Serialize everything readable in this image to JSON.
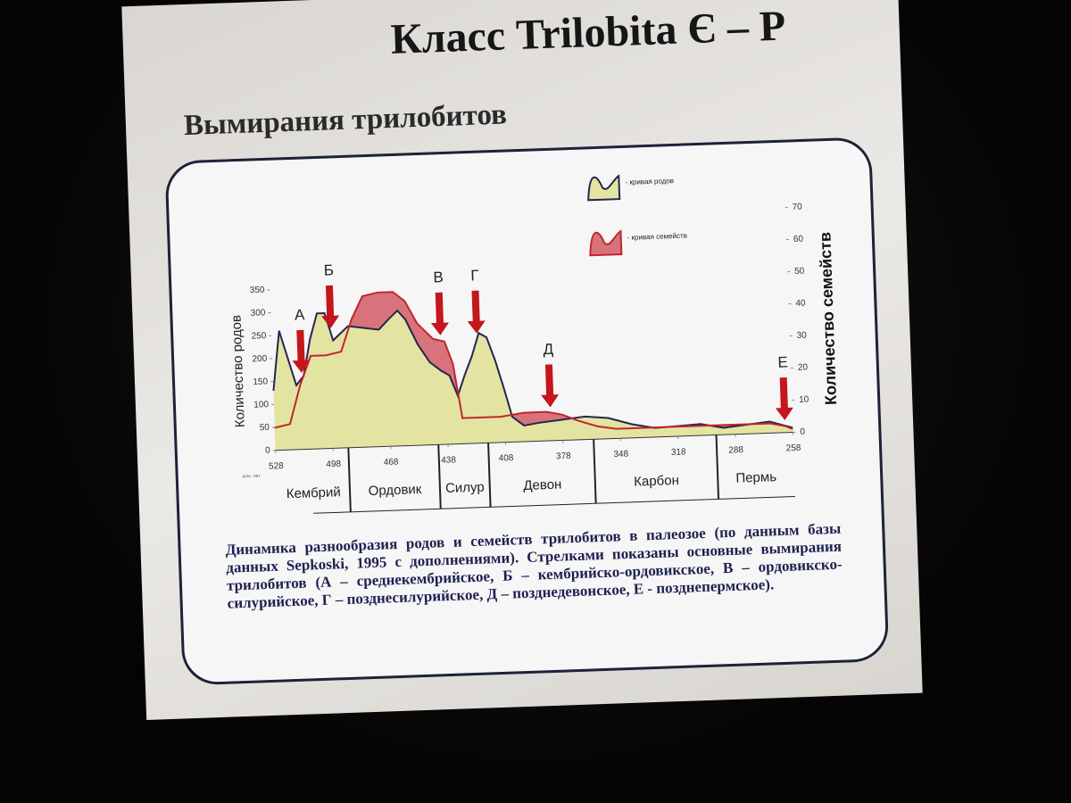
{
  "slide": {
    "title": "Класс Trilobita Є – P",
    "subtitle": "Вымирания трилобитов",
    "caption": "Динамика разнообразия родов и семейств трилобитов в палеозое (по данным базы данных Sepkoski, 1995 с дополнениями). Стрелками показаны основные вымирания трилобитов (А – среднекембрийское, Б – кембрийско-ордовикское, В – ордовикско-силурийское, Г – позднесилурийское, Д – позднедевонское, Е - позднепермское)."
  },
  "chart_data": {
    "type": "area",
    "x_unit_label": "млн. лет",
    "y_label": "Количество родов",
    "y2_label": "Количество семейств",
    "xlim": [
      528,
      258
    ],
    "xticks": [
      528,
      498,
      468,
      438,
      408,
      378,
      348,
      318,
      288,
      258
    ],
    "ylim": [
      0,
      350
    ],
    "yticks": [
      0,
      50,
      100,
      150,
      200,
      250,
      300,
      350
    ],
    "y2lim": [
      0,
      70
    ],
    "y2ticks": [
      0,
      10,
      20,
      30,
      40,
      50,
      60,
      70
    ],
    "periods": [
      "Кембрий",
      "Ордовик",
      "Силур",
      "Девон",
      "Карбон",
      "Пермь"
    ],
    "period_bounds": [
      490,
      443,
      417,
      362,
      298
    ],
    "series": [
      {
        "name": "- кривая семейств",
        "color": "#d9737b",
        "line_color": "#c0262e",
        "axis": "y2",
        "x": [
          528,
          520,
          514,
          508,
          500,
          492,
          486,
          480,
          472,
          464,
          458,
          452,
          444,
          438,
          434,
          430,
          420,
          410,
          398,
          386,
          378,
          370,
          360,
          350,
          340,
          330,
          318,
          306,
          294,
          282,
          270,
          262,
          258
        ],
        "values": [
          7,
          8,
          20,
          29,
          29,
          30,
          40,
          47,
          48,
          48,
          45,
          38,
          33,
          32,
          25,
          8,
          8,
          8,
          9,
          9,
          8,
          6,
          4,
          3,
          3,
          3,
          3,
          3,
          3,
          3,
          3,
          2,
          1
        ]
      },
      {
        "name": "- кривая родов",
        "color": "#e4e4a2",
        "line_color": "#23264f",
        "x": [
          528,
          524,
          520,
          516,
          512,
          508,
          504,
          500,
          496,
          492,
          488,
          480,
          472,
          466,
          462,
          458,
          452,
          446,
          440,
          436,
          432,
          428,
          424,
          420,
          416,
          412,
          408,
          404,
          398,
          390,
          378,
          366,
          354,
          342,
          330,
          318,
          306,
          294,
          282,
          270,
          262,
          258
        ],
        "values": [
          130,
          260,
          200,
          140,
          160,
          240,
          295,
          295,
          235,
          250,
          265,
          260,
          255,
          280,
          295,
          275,
          220,
          180,
          160,
          150,
          105,
          150,
          190,
          240,
          230,
          180,
          120,
          55,
          35,
          40,
          45,
          50,
          45,
          30,
          20,
          22,
          25,
          15,
          20,
          25,
          15,
          10
        ]
      }
    ],
    "annotations": [
      {
        "label": "А",
        "x": 513
      },
      {
        "label": "Б",
        "x": 497
      },
      {
        "label": "В",
        "x": 440
      },
      {
        "label": "Г",
        "x": 421
      },
      {
        "label": "Д",
        "x": 384
      },
      {
        "label": "Е",
        "x": 262
      }
    ]
  }
}
